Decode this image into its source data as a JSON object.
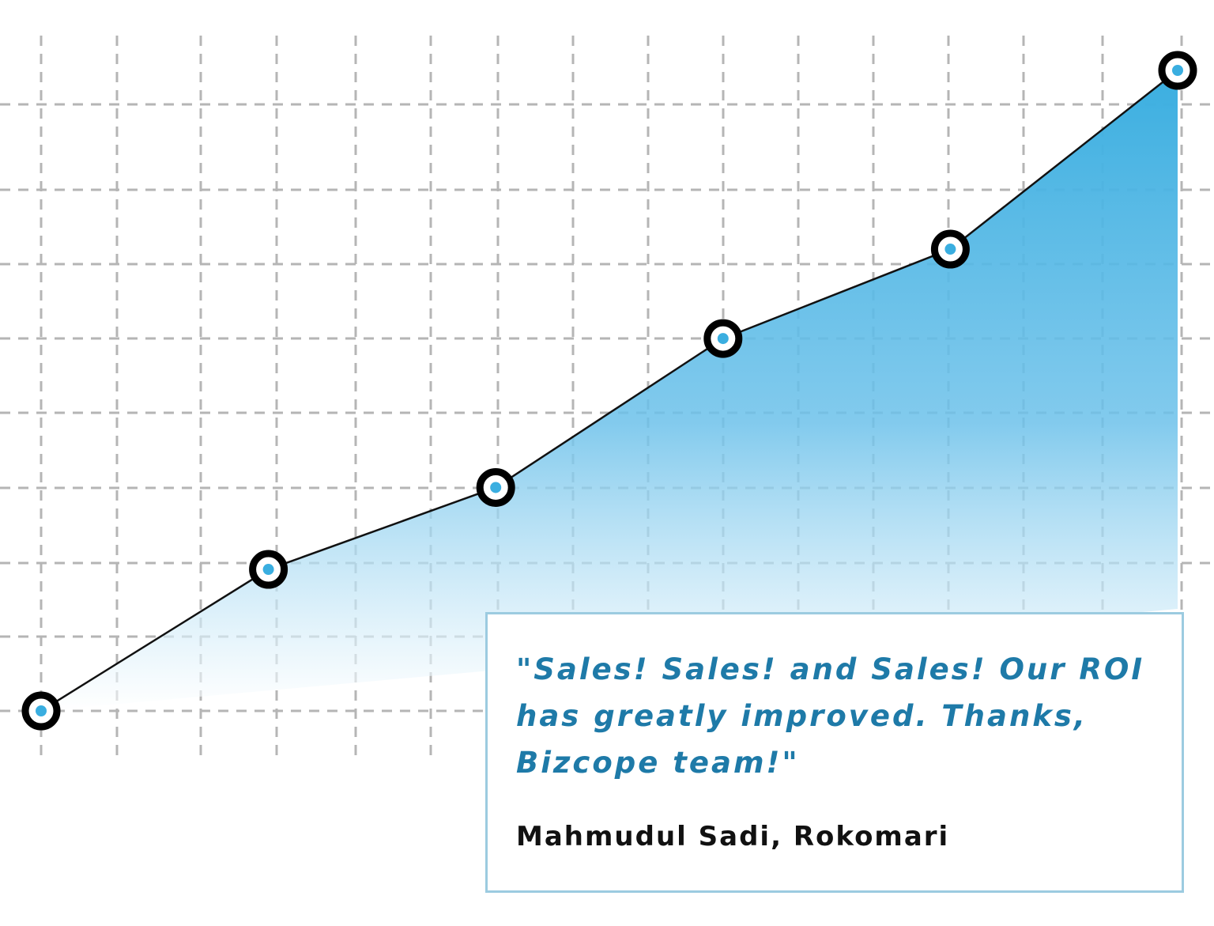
{
  "chart_data": {
    "type": "area",
    "title": "",
    "xlabel": "",
    "ylabel": "",
    "x": [
      0,
      1,
      2,
      3,
      4,
      5
    ],
    "series": [
      {
        "values": [
          0,
          1.9,
          3.0,
          5.0,
          6.2,
          8.6
        ]
      }
    ],
    "xlim": [
      0,
      5
    ],
    "ylim": [
      0,
      8.6
    ],
    "grid": true,
    "grid_style": "dashed",
    "legend": "none",
    "line_color": "#111111",
    "fill_color_top": "#3aaee0",
    "fill_color_bottom": "#ffffff",
    "marker_ring_color": "#000000",
    "marker_center_color": "#3aaee0"
  },
  "testimonial": {
    "quote": "\"Sales! Sales! and Sales! Our ROI has greatly improved. Thanks, Bizcope team!\"",
    "author": "Mahmudul Sadi, Rokomari",
    "quote_color": "#1e7aa8",
    "border_color": "#9ccbe0"
  }
}
